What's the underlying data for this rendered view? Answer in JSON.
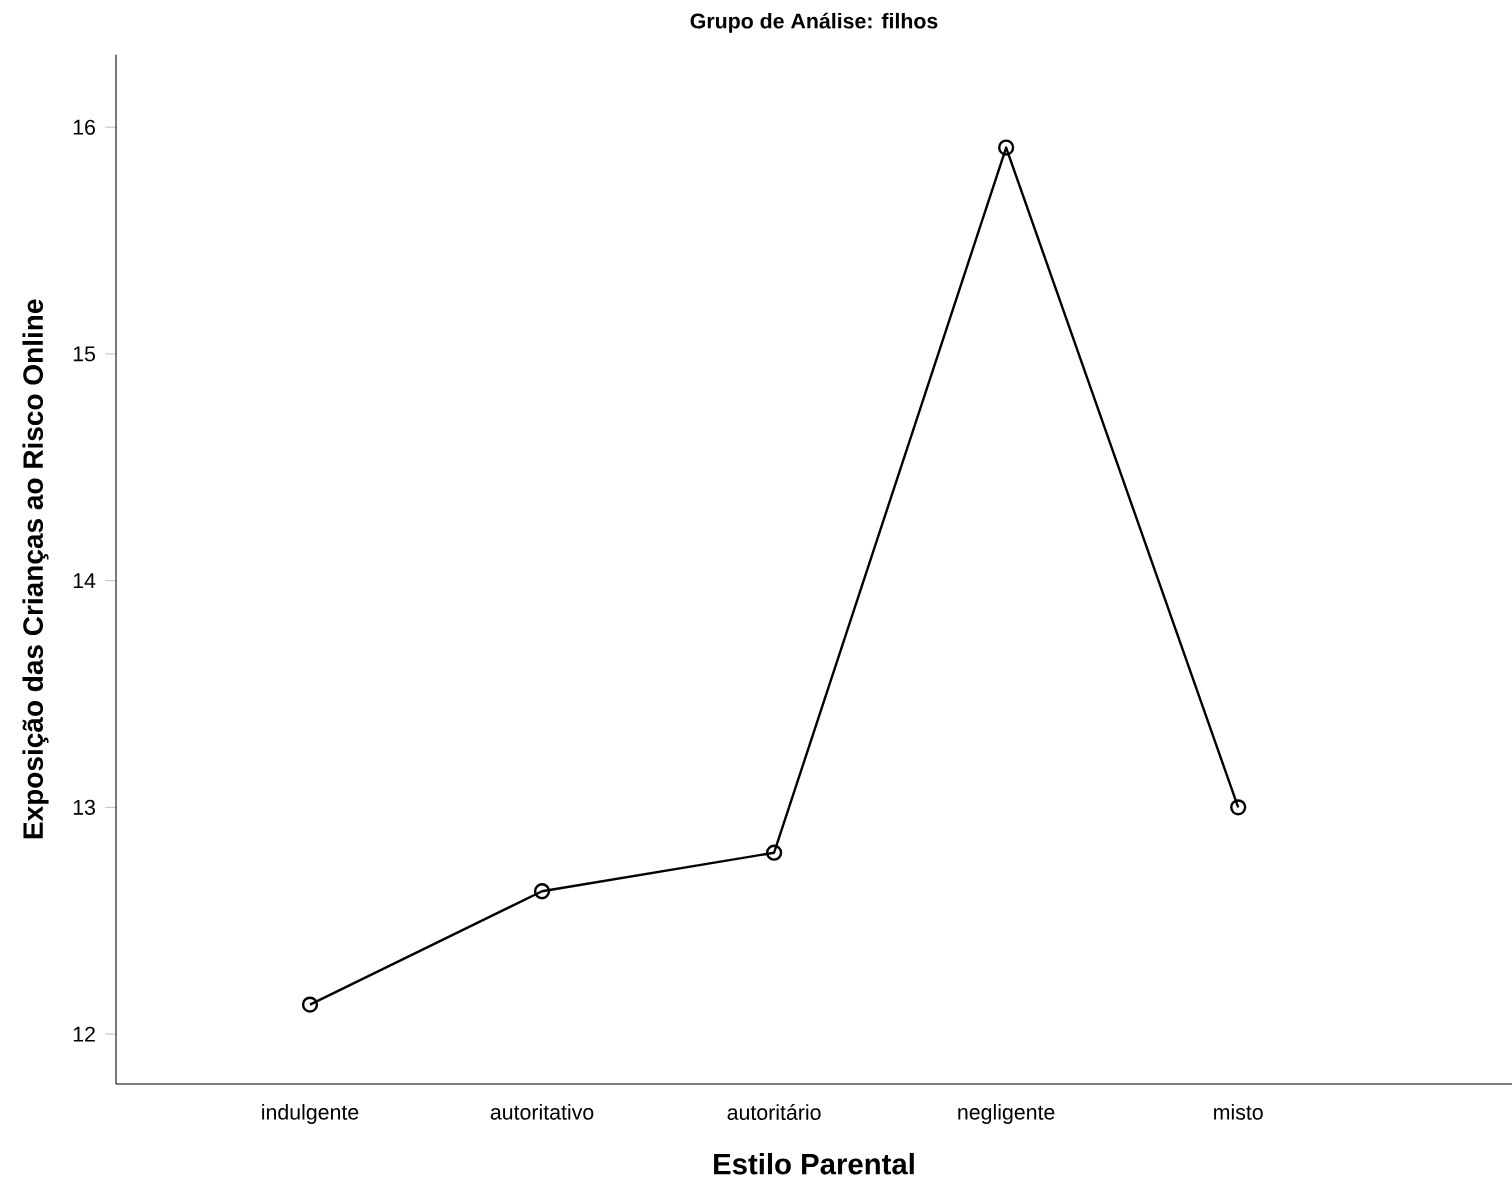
{
  "chart_data": {
    "type": "line",
    "title": "Grupo de Análise: filhos",
    "xlabel": "Estilo Parental",
    "ylabel": "Exposição das Crianças ao Risco Online",
    "categories": [
      "indulgente",
      "autoritativo",
      "autoritário",
      "negligente",
      "misto"
    ],
    "values": [
      12.13,
      12.63,
      12.8,
      15.91,
      13.0
    ],
    "color": "#000000",
    "marker": "circle",
    "line_style": "solid",
    "grid": false,
    "ylim": [
      11.78,
      16.32
    ],
    "yticks": [
      12,
      13,
      14,
      15,
      16
    ]
  }
}
